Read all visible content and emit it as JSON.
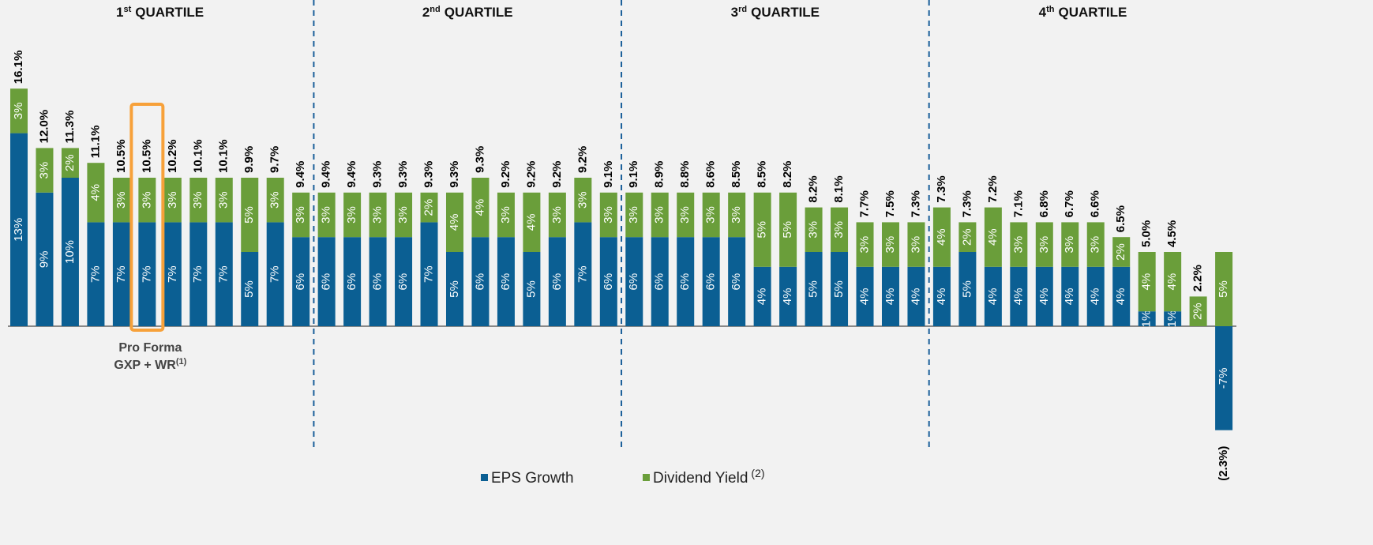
{
  "chart_data": {
    "type": "bar",
    "stacked": true,
    "quartiles": [
      {
        "num": "1",
        "sup": "st",
        "text": "QUARTILE"
      },
      {
        "num": "2",
        "sup": "nd",
        "text": "QUARTILE"
      },
      {
        "num": "3",
        "sup": "rd",
        "text": "QUARTILE"
      },
      {
        "num": "4",
        "sup": "th",
        "text": "QUARTILE"
      }
    ],
    "annotation": {
      "line1": "Pro Forma",
      "line2": "GXP + WR",
      "note": "(1)"
    },
    "highlight_index": 5,
    "ylim": [
      -8,
      17
    ],
    "series": [
      {
        "name": "EPS Growth",
        "color": "#0b5f93",
        "values": [
          13,
          9,
          10,
          7,
          7,
          7,
          7,
          7,
          7,
          5,
          7,
          6,
          6,
          6,
          6,
          6,
          7,
          5,
          6,
          6,
          5,
          6,
          7,
          6,
          6,
          6,
          6,
          6,
          6,
          4,
          4,
          5,
          5,
          4,
          4,
          4,
          4,
          5,
          4,
          4,
          4,
          4,
          4,
          4,
          1,
          1,
          null,
          -7
        ],
        "value_labels": [
          "13%",
          "9%",
          "10%",
          "7%",
          "7%",
          "7%",
          "7%",
          "7%",
          "7%",
          "5%",
          "7%",
          "6%",
          "6%",
          "6%",
          "6%",
          "6%",
          "7%",
          "5%",
          "6%",
          "6%",
          "5%",
          "6%",
          "7%",
          "6%",
          "6%",
          "6%",
          "6%",
          "6%",
          "6%",
          "4%",
          "4%",
          "5%",
          "5%",
          "4%",
          "4%",
          "4%",
          "4%",
          "5%",
          "4%",
          "4%",
          "4%",
          "4%",
          "4%",
          "4%",
          "1%",
          "1%",
          null,
          "-7%"
        ]
      },
      {
        "name": "Dividend Yield",
        "note": "(2)",
        "color": "#6a9e3a",
        "values": [
          3,
          3,
          2,
          4,
          3,
          3,
          3,
          3,
          3,
          5,
          3,
          3,
          3,
          3,
          3,
          3,
          2,
          4,
          4,
          3,
          4,
          3,
          3,
          3,
          3,
          3,
          3,
          3,
          3,
          5,
          5,
          3,
          3,
          3,
          3,
          3,
          4,
          2,
          4,
          3,
          3,
          3,
          3,
          2,
          4,
          4,
          2,
          5
        ],
        "value_labels": [
          "3%",
          "3%",
          "2%",
          "4%",
          "3%",
          "3%",
          "3%",
          "3%",
          "3%",
          "5%",
          "3%",
          "3%",
          "3%",
          "3%",
          "3%",
          "3%",
          "2%",
          "4%",
          "4%",
          "3%",
          "4%",
          "3%",
          "3%",
          "3%",
          "3%",
          "3%",
          "3%",
          "3%",
          "3%",
          "5%",
          "5%",
          "3%",
          "3%",
          "3%",
          "3%",
          "3%",
          "4%",
          "2%",
          "4%",
          "3%",
          "3%",
          "3%",
          "3%",
          "2%",
          "4%",
          "4%",
          "2%",
          "5%"
        ]
      }
    ],
    "totals": [
      16.1,
      12.0,
      11.3,
      11.1,
      10.5,
      10.5,
      10.2,
      10.1,
      10.1,
      9.9,
      9.7,
      9.4,
      9.4,
      9.4,
      9.3,
      9.3,
      9.3,
      9.3,
      9.3,
      9.2,
      9.2,
      9.2,
      9.2,
      9.1,
      9.1,
      8.9,
      8.8,
      8.6,
      8.5,
      8.5,
      8.2,
      8.2,
      8.1,
      7.7,
      7.5,
      7.3,
      7.3,
      7.3,
      7.2,
      7.1,
      6.8,
      6.7,
      6.6,
      6.5,
      5.0,
      4.5,
      2.2,
      -2.3
    ],
    "total_labels": [
      "16.1%",
      "12.0%",
      "11.3%",
      "11.1%",
      "10.5%",
      "10.5%",
      "10.2%",
      "10.1%",
      "10.1%",
      "9.9%",
      "9.7%",
      "9.4%",
      "9.4%",
      "9.4%",
      "9.3%",
      "9.3%",
      "9.3%",
      "9.3%",
      "9.3%",
      "9.2%",
      "9.2%",
      "9.2%",
      "9.2%",
      "9.1%",
      "9.1%",
      "8.9%",
      "8.8%",
      "8.6%",
      "8.5%",
      "8.5%",
      "8.2%",
      "8.2%",
      "8.1%",
      "7.7%",
      "7.5%",
      "7.3%",
      "7.3%",
      "7.3%",
      "7.2%",
      "7.1%",
      "6.8%",
      "6.7%",
      "6.6%",
      "6.5%",
      "5.0%",
      "4.5%",
      "2.2%",
      "(2.3%)"
    ]
  }
}
